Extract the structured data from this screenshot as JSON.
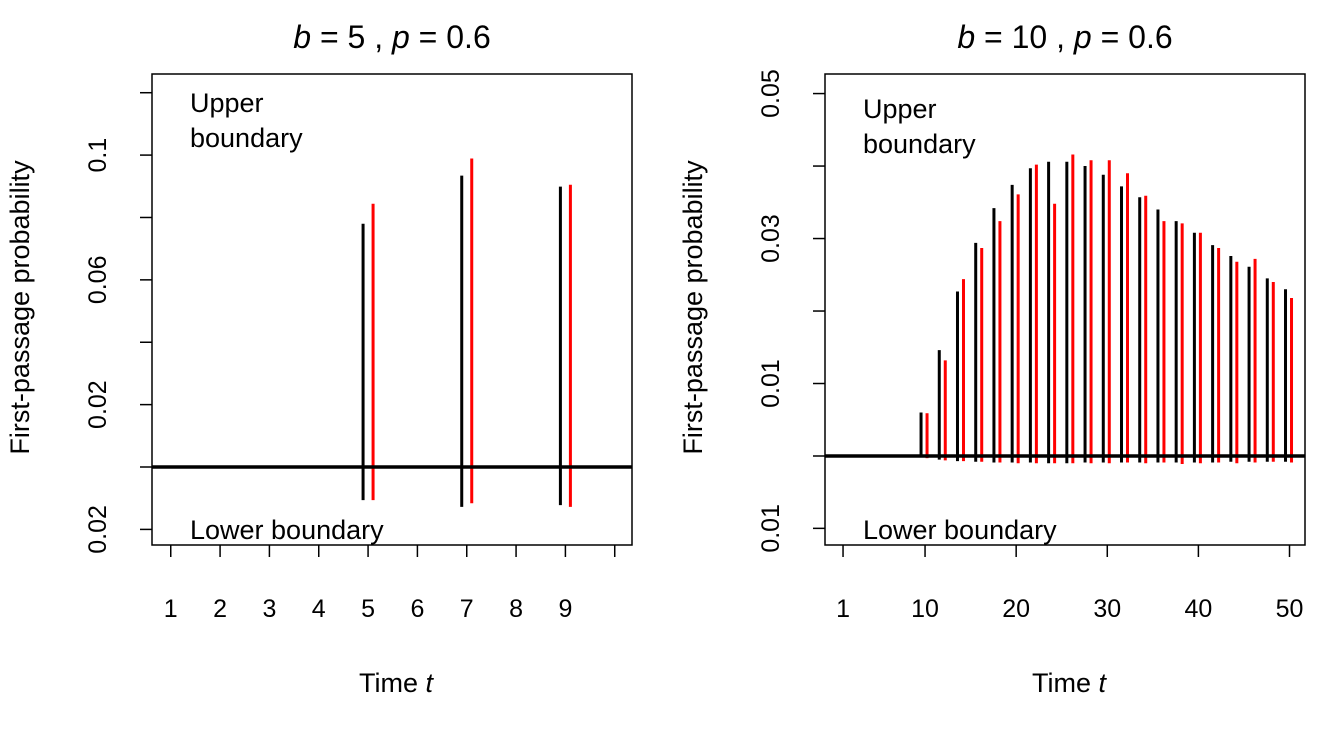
{
  "chart_data": [
    {
      "type": "bar",
      "title": {
        "b_symbol": "b",
        "b_value": "= 5 ,",
        "p_symbol": "p",
        "p_value": "= 0.6"
      },
      "xlabel": {
        "text": "Time",
        "var": "t"
      },
      "ylabel": "First-passage probability",
      "upper_annotation": [
        "Upper",
        "boundary"
      ],
      "lower_annotation": "Lower boundary",
      "xlim": [
        0.62,
        10.35
      ],
      "upper_ylim": [
        0,
        0.126
      ],
      "lower_ylim": [
        0,
        0.025
      ],
      "x_ticks": [
        1,
        2,
        3,
        4,
        5,
        6,
        7,
        8,
        9,
        10
      ],
      "x_tick_labels": [
        "1",
        "2",
        "3",
        "4",
        "5",
        "6",
        "7",
        "8",
        "9",
        ""
      ],
      "upper_y_ticks": [
        0,
        0.02,
        0.04,
        0.06,
        0.08,
        0.1,
        0.12
      ],
      "upper_y_tick_labels": {
        "0.02": "0.02",
        "0.06": "0.06",
        "0.1": "0.1"
      },
      "lower_y_ticks": [
        0.02
      ],
      "lower_y_tick_labels": {
        "0.02": "0.02"
      },
      "series_colors": [
        "#000000",
        "#ff0000"
      ],
      "x": [
        5,
        7,
        9
      ],
      "series": [
        {
          "upper": [
            0.078,
            0.0934,
            0.0899
          ],
          "lower": [
            0.0106,
            0.0128,
            0.0122
          ]
        },
        {
          "upper": [
            0.0844,
            0.0989,
            0.0905
          ],
          "lower": [
            0.0106,
            0.0116,
            0.0128
          ]
        }
      ]
    },
    {
      "type": "bar",
      "title": {
        "b_symbol": "b",
        "b_value": "= 10 ,",
        "p_symbol": "p",
        "p_value": "= 0.6"
      },
      "xlabel": {
        "text": "Time",
        "var": "t"
      },
      "ylabel": "First-passage probability",
      "upper_annotation": [
        "Upper",
        "boundary"
      ],
      "lower_annotation": "Lower boundary",
      "xlim": [
        -0.98,
        51.7
      ],
      "upper_ylim": [
        0,
        0.0527
      ],
      "lower_ylim": [
        0,
        0.0123
      ],
      "x_ticks": [
        1,
        10,
        20,
        30,
        40,
        50
      ],
      "x_tick_labels": [
        "1",
        "10",
        "20",
        "30",
        "40",
        "50"
      ],
      "upper_y_ticks": [
        0,
        0.01,
        0.02,
        0.03,
        0.04,
        0.05
      ],
      "upper_y_tick_labels": {
        "0.01": "0.01",
        "0.03": "0.03",
        "0.05": "0.05"
      },
      "lower_y_ticks": [
        0.01
      ],
      "lower_y_tick_labels": {
        "0.01": "0.01"
      },
      "series_colors": [
        "#000000",
        "#ff0000"
      ],
      "x": [
        10,
        12,
        14,
        16,
        18,
        20,
        22,
        24,
        26,
        28,
        30,
        32,
        34,
        36,
        38,
        40,
        42,
        44,
        46,
        48,
        50
      ],
      "series": [
        {
          "upper": [
            0.006,
            0.0146,
            0.0227,
            0.0294,
            0.0342,
            0.0374,
            0.0397,
            0.0406,
            0.0406,
            0.04,
            0.0388,
            0.0372,
            0.0357,
            0.034,
            0.0324,
            0.0308,
            0.0291,
            0.0276,
            0.0261,
            0.0245,
            0.023
          ],
          "lower": [
            0.0002,
            0.0005,
            0.0007,
            0.0008,
            0.0009,
            0.0009,
            0.0009,
            0.001,
            0.001,
            0.0009,
            0.0009,
            0.0009,
            0.0009,
            0.0009,
            0.0009,
            0.0009,
            0.0009,
            0.0008,
            0.0008,
            0.0008,
            0.0008
          ]
        },
        {
          "upper": [
            0.0059,
            0.0132,
            0.0244,
            0.0287,
            0.0324,
            0.0361,
            0.0402,
            0.0348,
            0.0416,
            0.0408,
            0.0408,
            0.039,
            0.0359,
            0.0324,
            0.0321,
            0.0308,
            0.0287,
            0.0268,
            0.0272,
            0.024,
            0.0218
          ],
          "lower": [
            0.0003,
            0.0006,
            0.0007,
            0.0008,
            0.0009,
            0.001,
            0.001,
            0.001,
            0.001,
            0.001,
            0.001,
            0.0009,
            0.001,
            0.0009,
            0.0011,
            0.001,
            0.0009,
            0.001,
            0.0009,
            0.0008,
            0.0009
          ]
        }
      ]
    }
  ]
}
